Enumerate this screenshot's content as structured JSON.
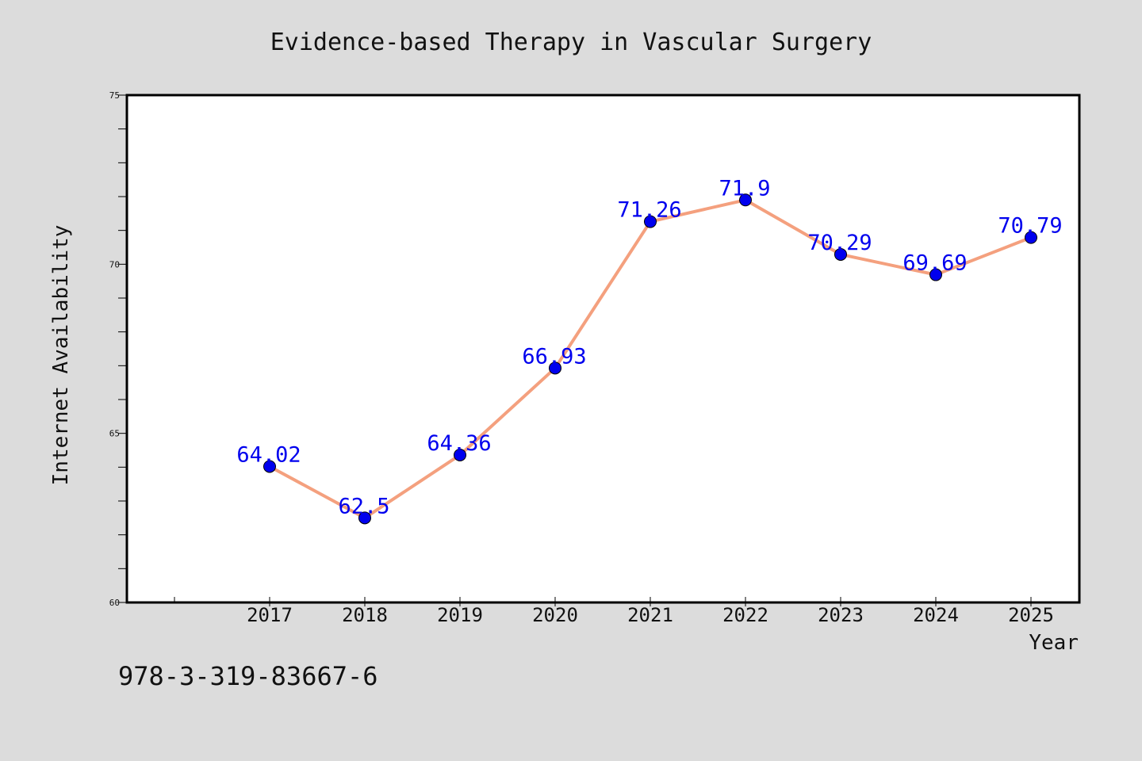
{
  "colors": {
    "background": "#dcdcdc",
    "plot_background": "#ffffff",
    "line": "#f4a07e",
    "marker": "#0000ee",
    "data_label": "#0000ee",
    "axis": "#000000"
  },
  "footer": {
    "isbn": "978-3-319-83667-6"
  },
  "chart_data": {
    "type": "line",
    "title": "Evidence-based Therapy in Vascular Surgery",
    "xlabel": "Year",
    "ylabel": "Internet Availability",
    "x": [
      "2017",
      "2018",
      "2019",
      "2020",
      "2021",
      "2022",
      "2023",
      "2024",
      "2025"
    ],
    "series": [
      {
        "values": [
          64.02,
          62.5,
          64.36,
          66.93,
          71.26,
          71.9,
          70.29,
          69.69,
          70.79
        ],
        "labels": [
          "64.02",
          "62.5",
          "64.36",
          "66.93",
          "71.26",
          "71.9",
          "70.29",
          "69.69",
          "70.79"
        ]
      }
    ],
    "y_ticks": [
      "60",
      "65",
      "70",
      "75"
    ],
    "ylim": [
      60,
      75
    ],
    "grid": false,
    "legend": "none"
  }
}
